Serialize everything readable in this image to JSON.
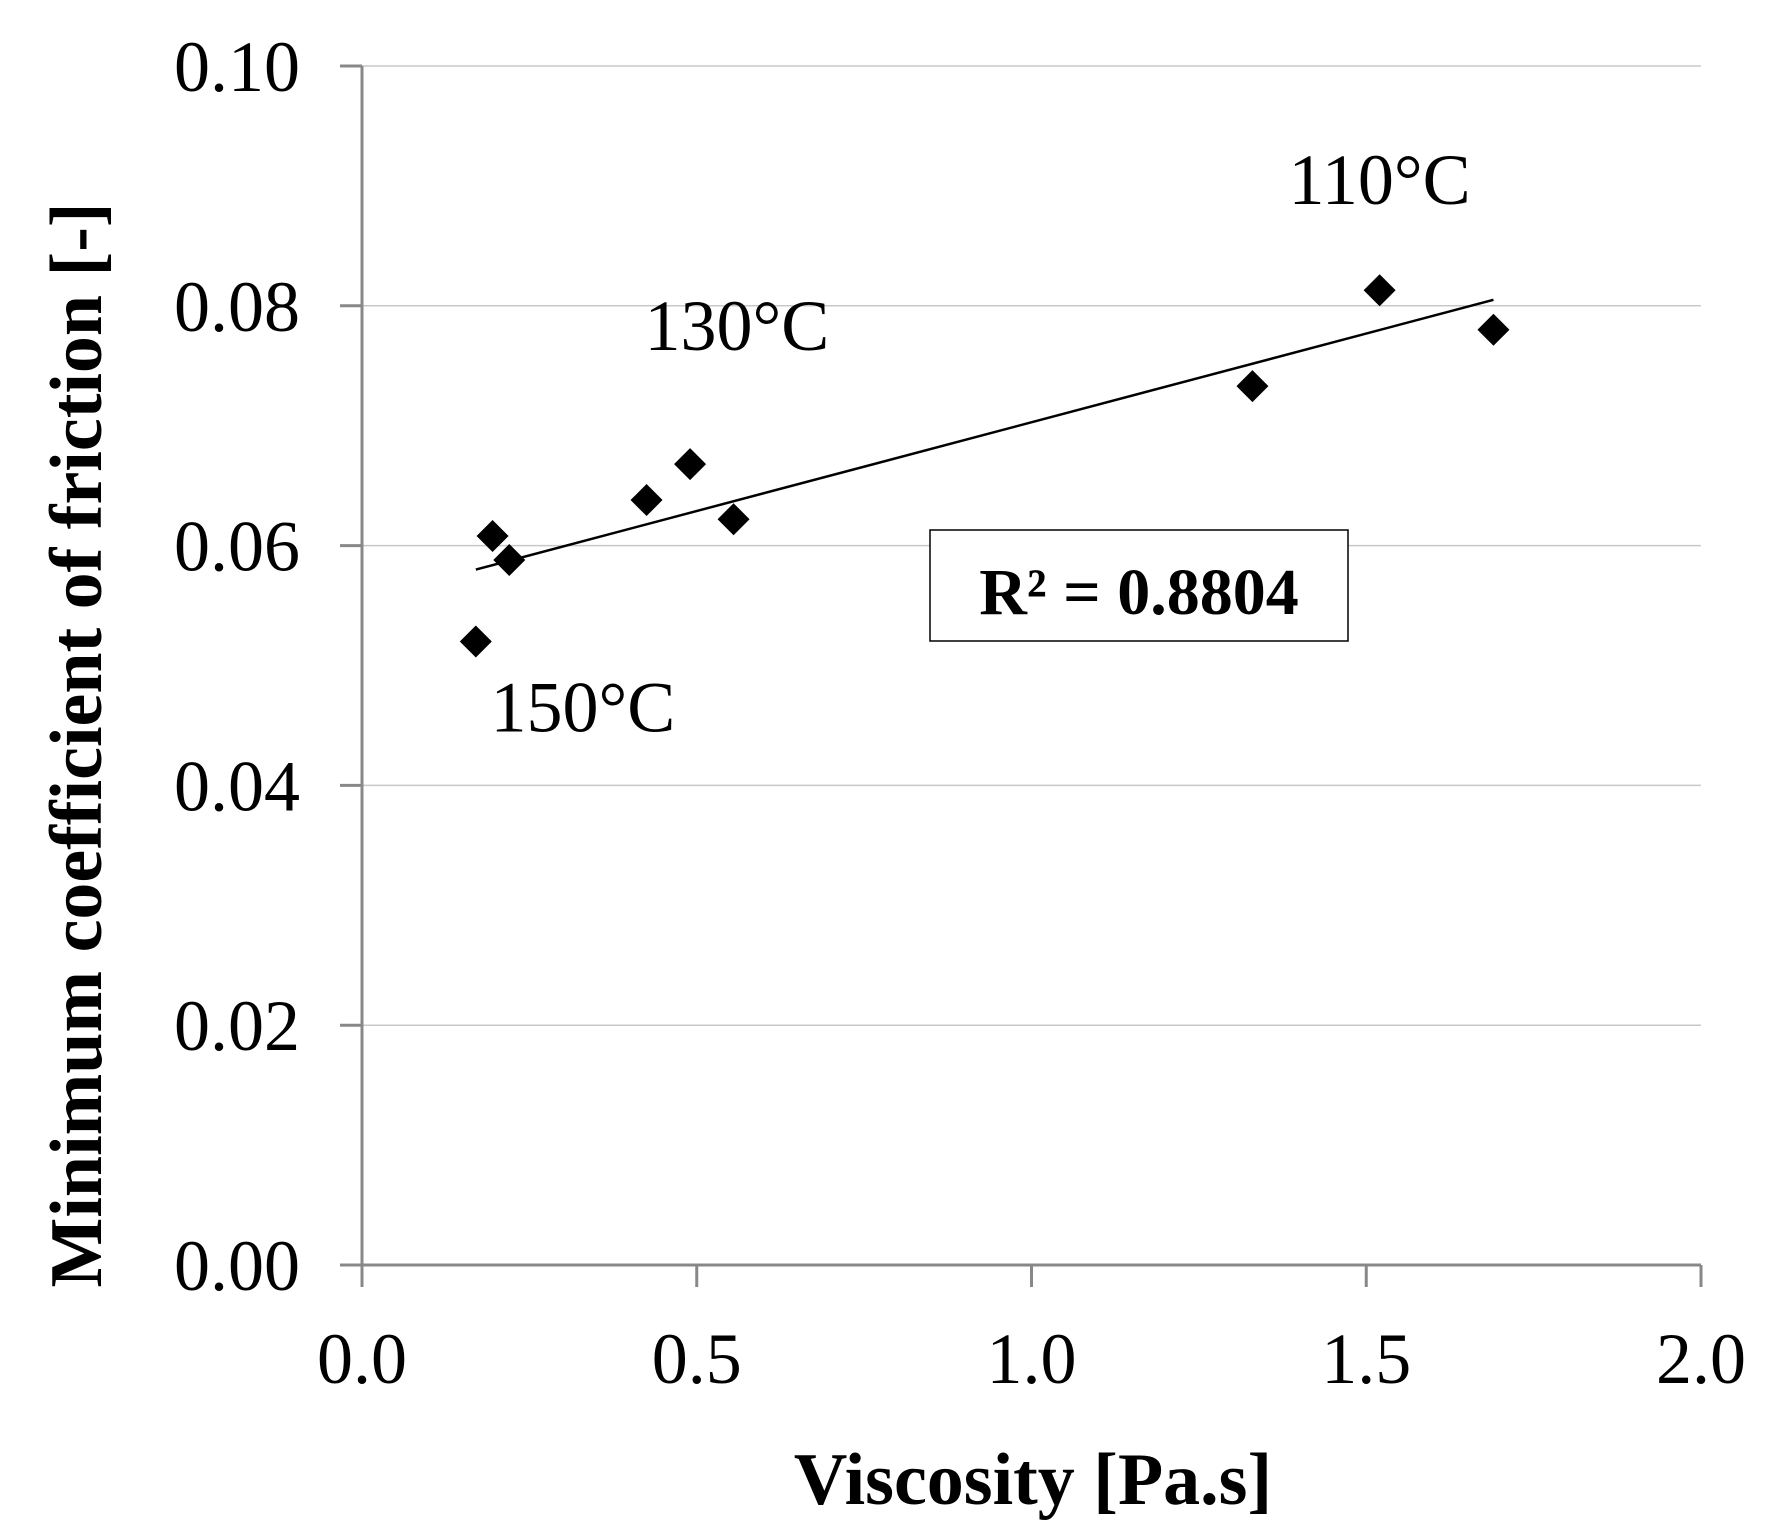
{
  "chart_data": {
    "type": "scatter",
    "title": "",
    "xlabel": "Viscosity [Pa.s]",
    "ylabel": "Minimum  coefficient of friction [-]",
    "xlim": [
      0.0,
      2.0
    ],
    "ylim": [
      0.0,
      0.1
    ],
    "x_ticks": [
      0.0,
      0.5,
      1.0,
      1.5,
      2.0
    ],
    "x_tick_labels": [
      "0.0",
      "0.5",
      "1.0",
      "1.5",
      "2.0"
    ],
    "y_ticks": [
      0.0,
      0.02,
      0.04,
      0.06,
      0.08,
      0.1
    ],
    "y_tick_labels": [
      "0.00",
      "0.02",
      "0.04",
      "0.06",
      "0.08",
      "0.10"
    ],
    "grid": "horizontal",
    "series": [
      {
        "name": "Minimum coefficient of friction",
        "marker": "diamond",
        "color": "#000000",
        "x": [
          0.17,
          0.195,
          0.22,
          0.425,
          0.49,
          0.555,
          1.33,
          1.52,
          1.69
        ],
        "y": [
          0.052,
          0.0608,
          0.0588,
          0.0638,
          0.0668,
          0.0622,
          0.0733,
          0.0813,
          0.078
        ]
      }
    ],
    "trendline": {
      "type": "linear",
      "x": [
        0.17,
        1.69
      ],
      "y": [
        0.058,
        0.0805
      ],
      "color": "#000000"
    },
    "annotations": [
      {
        "text": "110°C",
        "x": 1.52,
        "y": 0.0885
      },
      {
        "text": "130°C",
        "x": 0.56,
        "y": 0.0763
      },
      {
        "text": "150°C",
        "x": 0.33,
        "y": 0.0445
      }
    ],
    "r2_label": "R² = 0.8804"
  },
  "colors": {
    "axis": "#888888",
    "grid": "#c8c8c8",
    "marker": "#000000",
    "text": "#000000"
  }
}
